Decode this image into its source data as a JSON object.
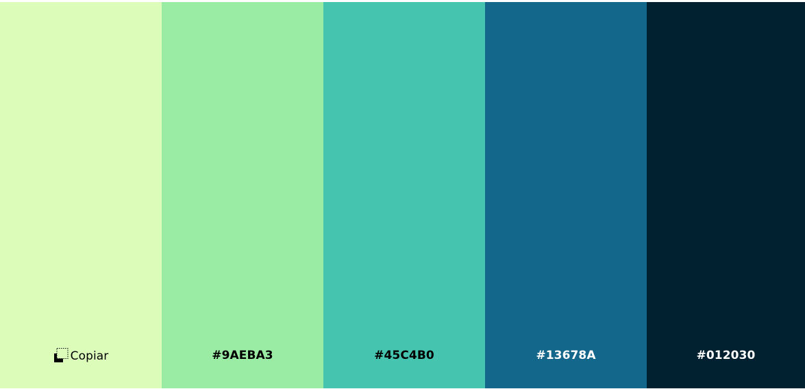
{
  "palette": {
    "swatches": [
      {
        "color": "#DCFDBA",
        "label": "Copiar",
        "tone": "light",
        "hover": true
      },
      {
        "color": "#9AEBA3",
        "label": "#9AEBA3",
        "tone": "light",
        "hover": false
      },
      {
        "color": "#45C4B0",
        "label": "#45C4B0",
        "tone": "light",
        "hover": false
      },
      {
        "color": "#13678A",
        "label": "#13678A",
        "tone": "dark",
        "hover": false
      },
      {
        "color": "#012030",
        "label": "#012030",
        "tone": "dark",
        "hover": false
      }
    ]
  },
  "icons": {
    "copy": "copy-icon"
  }
}
